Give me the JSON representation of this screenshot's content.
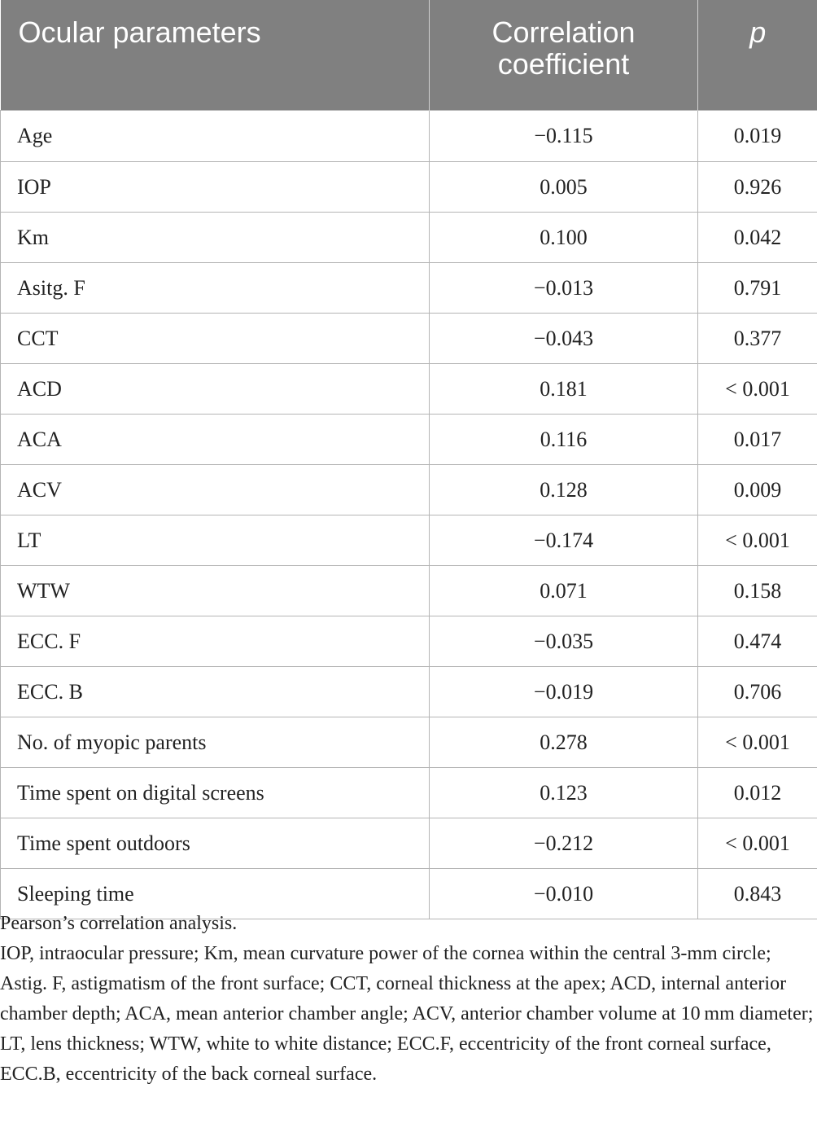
{
  "table": {
    "headers": [
      "Ocular parameters",
      "Correlation coefficient",
      "p"
    ],
    "rows": [
      {
        "parameter": "Age",
        "coefficient": "−0.115",
        "p": "0.019"
      },
      {
        "parameter": "IOP",
        "coefficient": "0.005",
        "p": "0.926"
      },
      {
        "parameter": "Km",
        "coefficient": "0.100",
        "p": "0.042"
      },
      {
        "parameter": "Asitg. F",
        "coefficient": "−0.013",
        "p": "0.791"
      },
      {
        "parameter": "CCT",
        "coefficient": "−0.043",
        "p": "0.377"
      },
      {
        "parameter": "ACD",
        "coefficient": "0.181",
        "p": "< 0.001"
      },
      {
        "parameter": "ACA",
        "coefficient": "0.116",
        "p": "0.017"
      },
      {
        "parameter": "ACV",
        "coefficient": "0.128",
        "p": "0.009"
      },
      {
        "parameter": "LT",
        "coefficient": "−0.174",
        "p": "< 0.001"
      },
      {
        "parameter": "WTW",
        "coefficient": "0.071",
        "p": "0.158"
      },
      {
        "parameter": "ECC. F",
        "coefficient": "−0.035",
        "p": "0.474"
      },
      {
        "parameter": "ECC. B",
        "coefficient": "−0.019",
        "p": "0.706"
      },
      {
        "parameter": "No. of myopic parents",
        "coefficient": "0.278",
        "p": "< 0.001"
      },
      {
        "parameter": "Time spent on digital screens",
        "coefficient": "0.123",
        "p": "0.012"
      },
      {
        "parameter": "Time spent outdoors",
        "coefficient": "−0.212",
        "p": "< 0.001"
      },
      {
        "parameter": "Sleeping time",
        "coefficient": "−0.010",
        "p": "0.843"
      }
    ]
  },
  "footnotes": {
    "method": "Pearson’s correlation analysis.",
    "abbreviations": "IOP, intraocular pressure; Km, mean curvature power of the cornea within the central 3-mm circle; Astig. F, astigmatism of the front surface; CCT, corneal thickness at the apex; ACD, internal anterior chamber depth; ACA, mean anterior chamber angle; ACV, anterior chamber volume at 10 mm diameter; LT, lens thickness; WTW, white to white distance; ECC.F, eccentricity of the front corneal surface, ECC.B, eccentricity of the back corneal surface."
  }
}
